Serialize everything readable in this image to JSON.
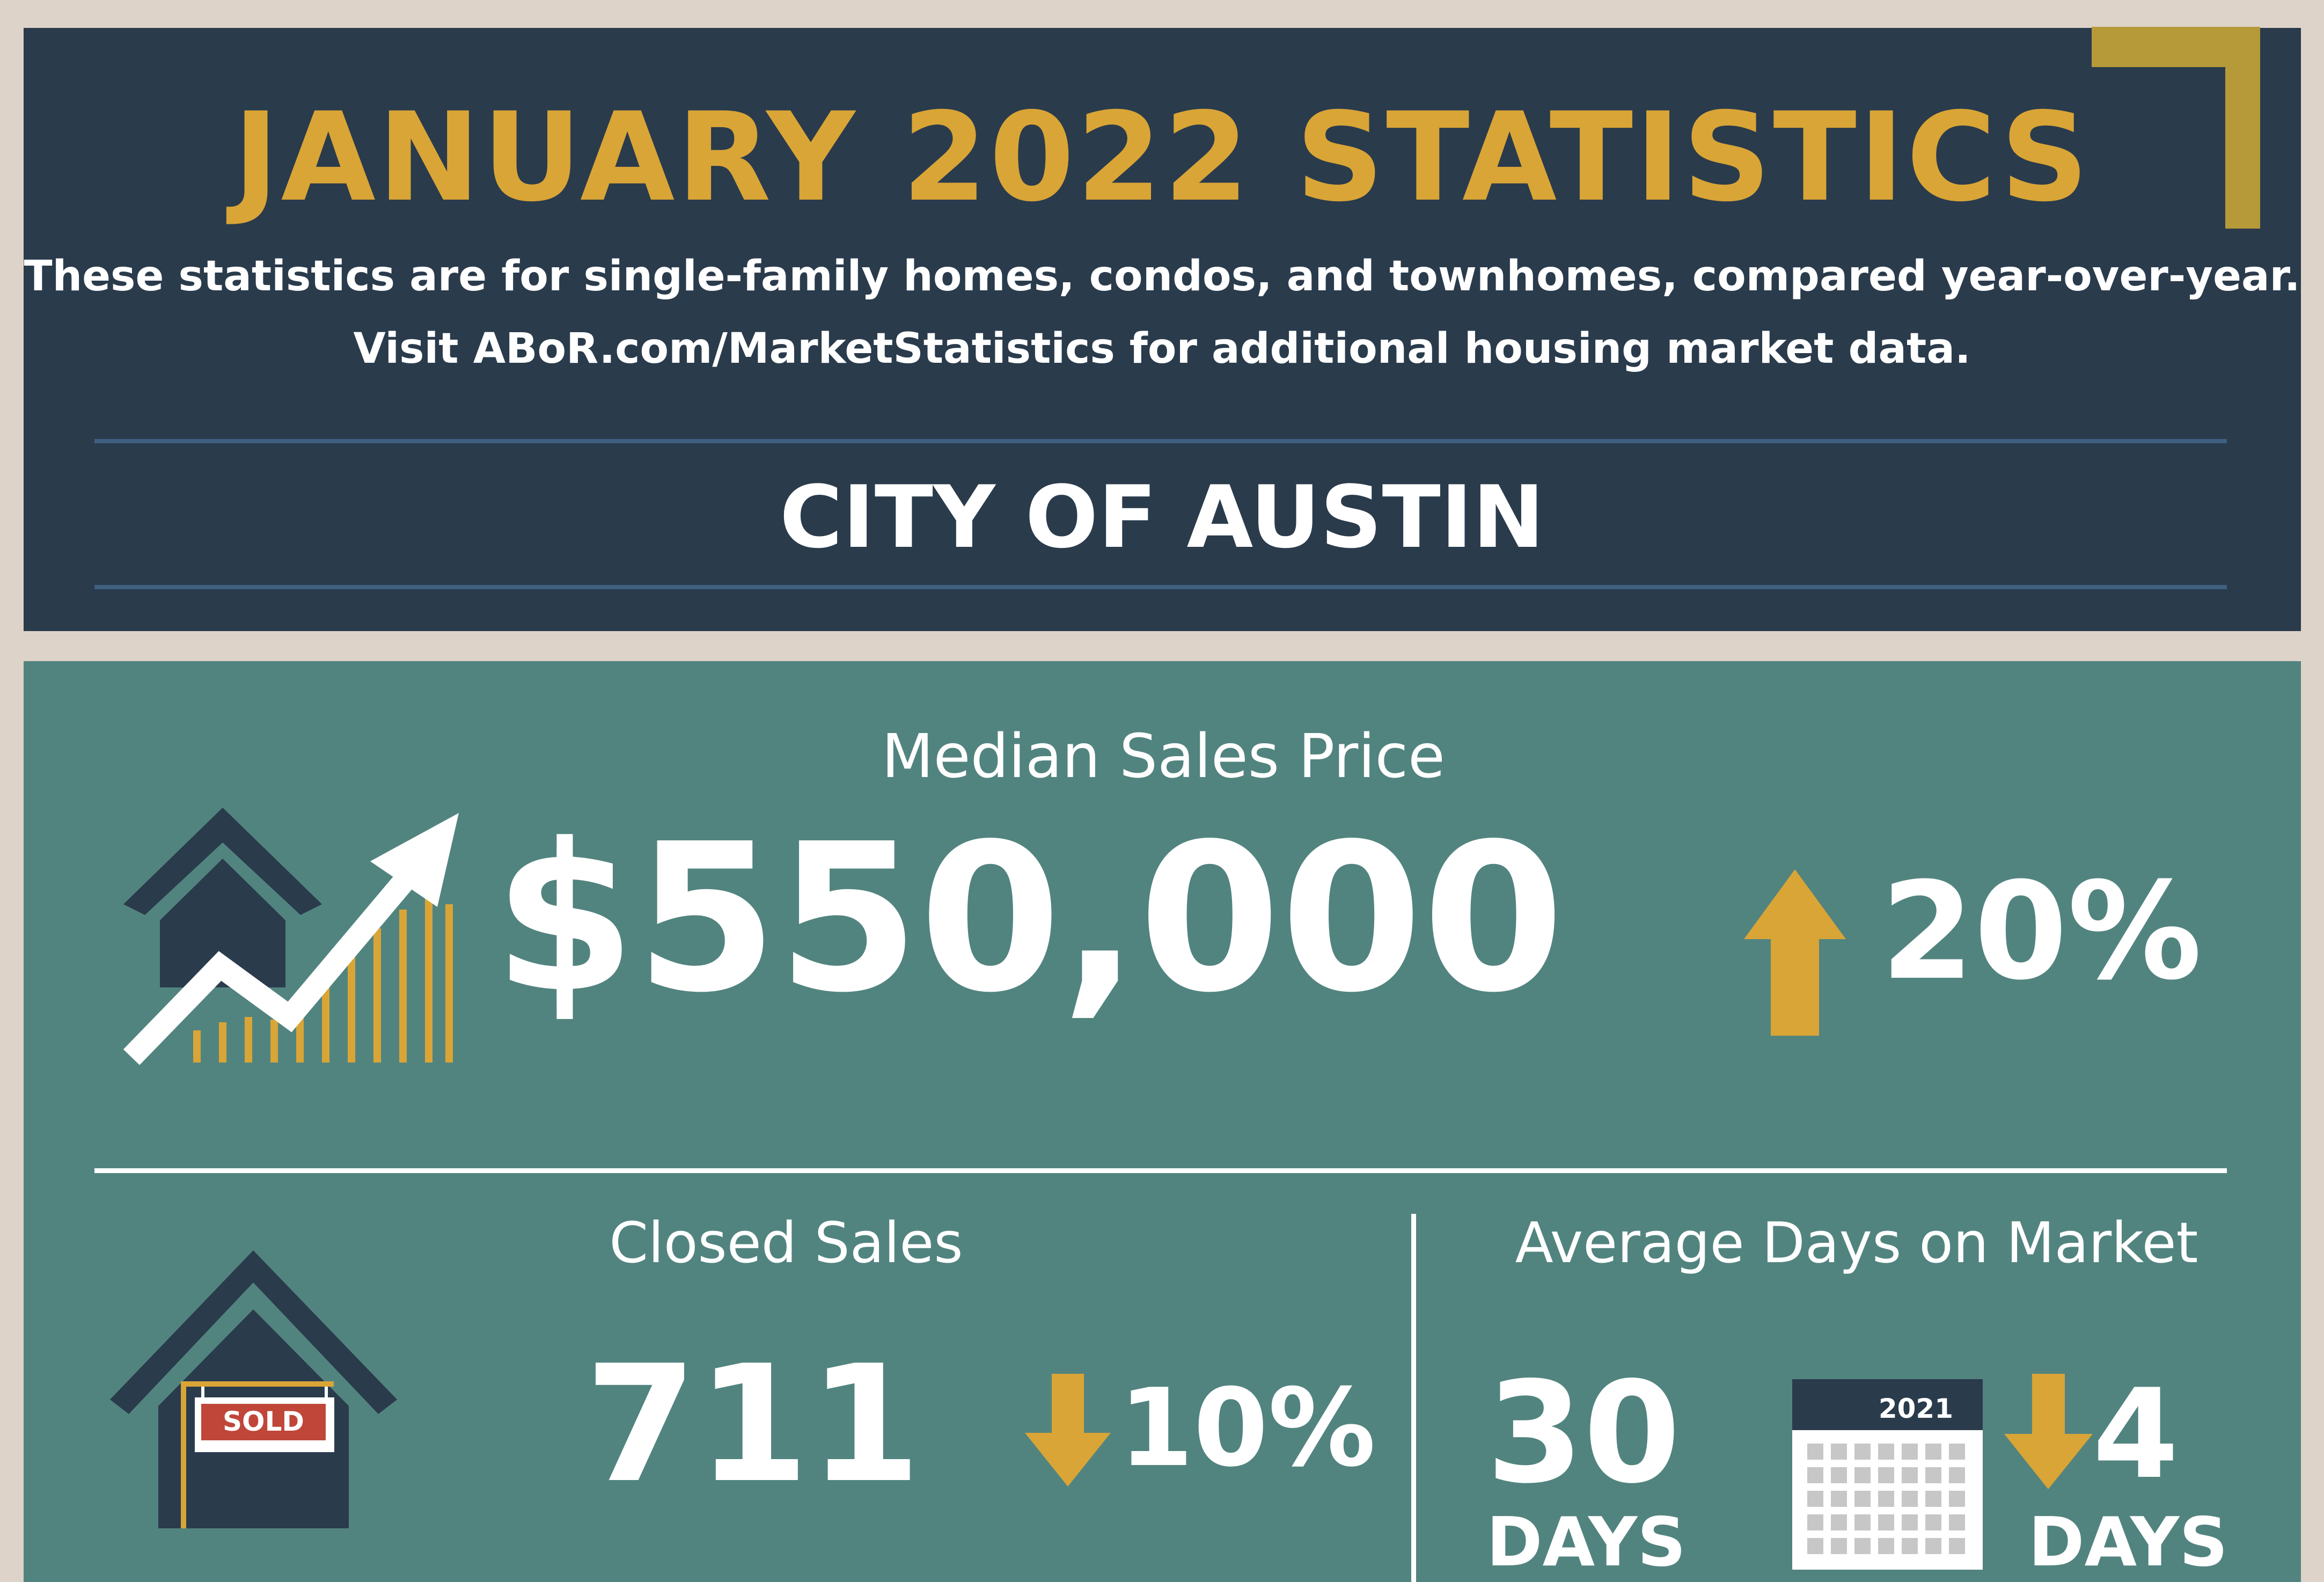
{
  "header": {
    "title": "JANUARY 2022 STATISTICS",
    "subtitle_line1": "These statistics are for single-family homes, condos, and townhomes, compared year-over-year.",
    "subtitle_line2": "Visit ABoR.com/MarketStatistics for additional housing market data.",
    "region": "CITY OF AUSTIN"
  },
  "median_sales_price": {
    "label": "Median Sales Price",
    "value": "$550,000",
    "change": "20%",
    "direction": "up"
  },
  "closed_sales": {
    "label": "Closed Sales",
    "value": "711",
    "change": "10%",
    "direction": "down",
    "sign_text": "SOLD"
  },
  "average_days_on_market": {
    "label": "Average Days on Market",
    "value": "30",
    "unit": "DAYS",
    "calendar_year": "2021",
    "change": "4",
    "change_unit": "DAYS",
    "direction": "down"
  },
  "colors": {
    "header_bg": "#2a3b4c",
    "content_bg": "#52847f",
    "accent_gold": "#d9a536",
    "frame": "#ddd3c9",
    "sold_red": "#c0463a"
  }
}
